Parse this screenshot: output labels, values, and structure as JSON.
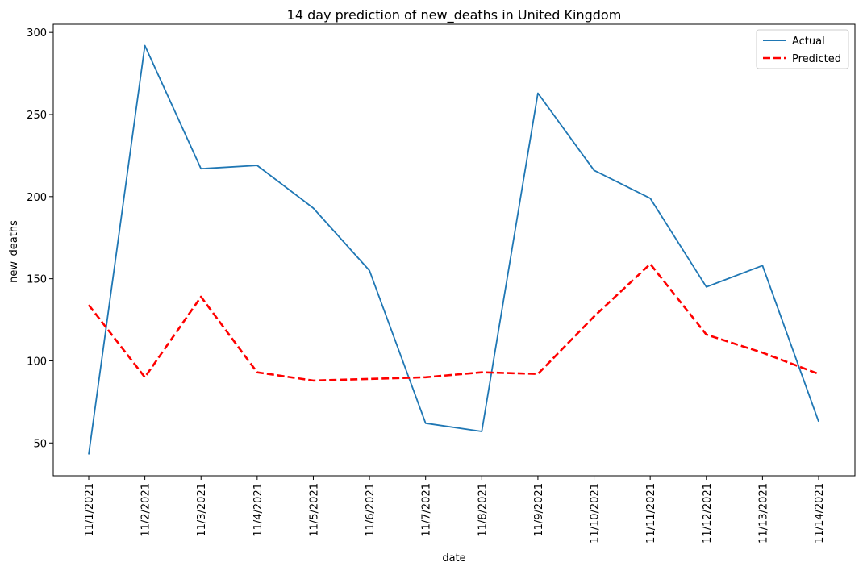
{
  "chart_data": {
    "type": "line",
    "title": "14 day prediction of new_deaths in United Kingdom",
    "xlabel": "date",
    "ylabel": "new_deaths",
    "categories": [
      "11/1/2021",
      "11/2/2021",
      "11/3/2021",
      "11/4/2021",
      "11/5/2021",
      "11/6/2021",
      "11/7/2021",
      "11/8/2021",
      "11/9/2021",
      "11/10/2021",
      "11/11/2021",
      "11/12/2021",
      "11/13/2021",
      "11/14/2021"
    ],
    "y_ticks": [
      50,
      100,
      150,
      200,
      250,
      300
    ],
    "ylim": [
      30,
      305
    ],
    "grid": false,
    "legend_position": "top-right",
    "series": [
      {
        "name": "Actual",
        "color": "#1f77b4",
        "style": "solid",
        "values": [
          43,
          292,
          217,
          219,
          193,
          155,
          62,
          57,
          263,
          216,
          199,
          145,
          158,
          63
        ]
      },
      {
        "name": "Predicted",
        "color": "#ff0000",
        "style": "dashed",
        "values": [
          134,
          90,
          139,
          93,
          88,
          89,
          90,
          93,
          92,
          127,
          159,
          116,
          105,
          92
        ]
      }
    ]
  }
}
